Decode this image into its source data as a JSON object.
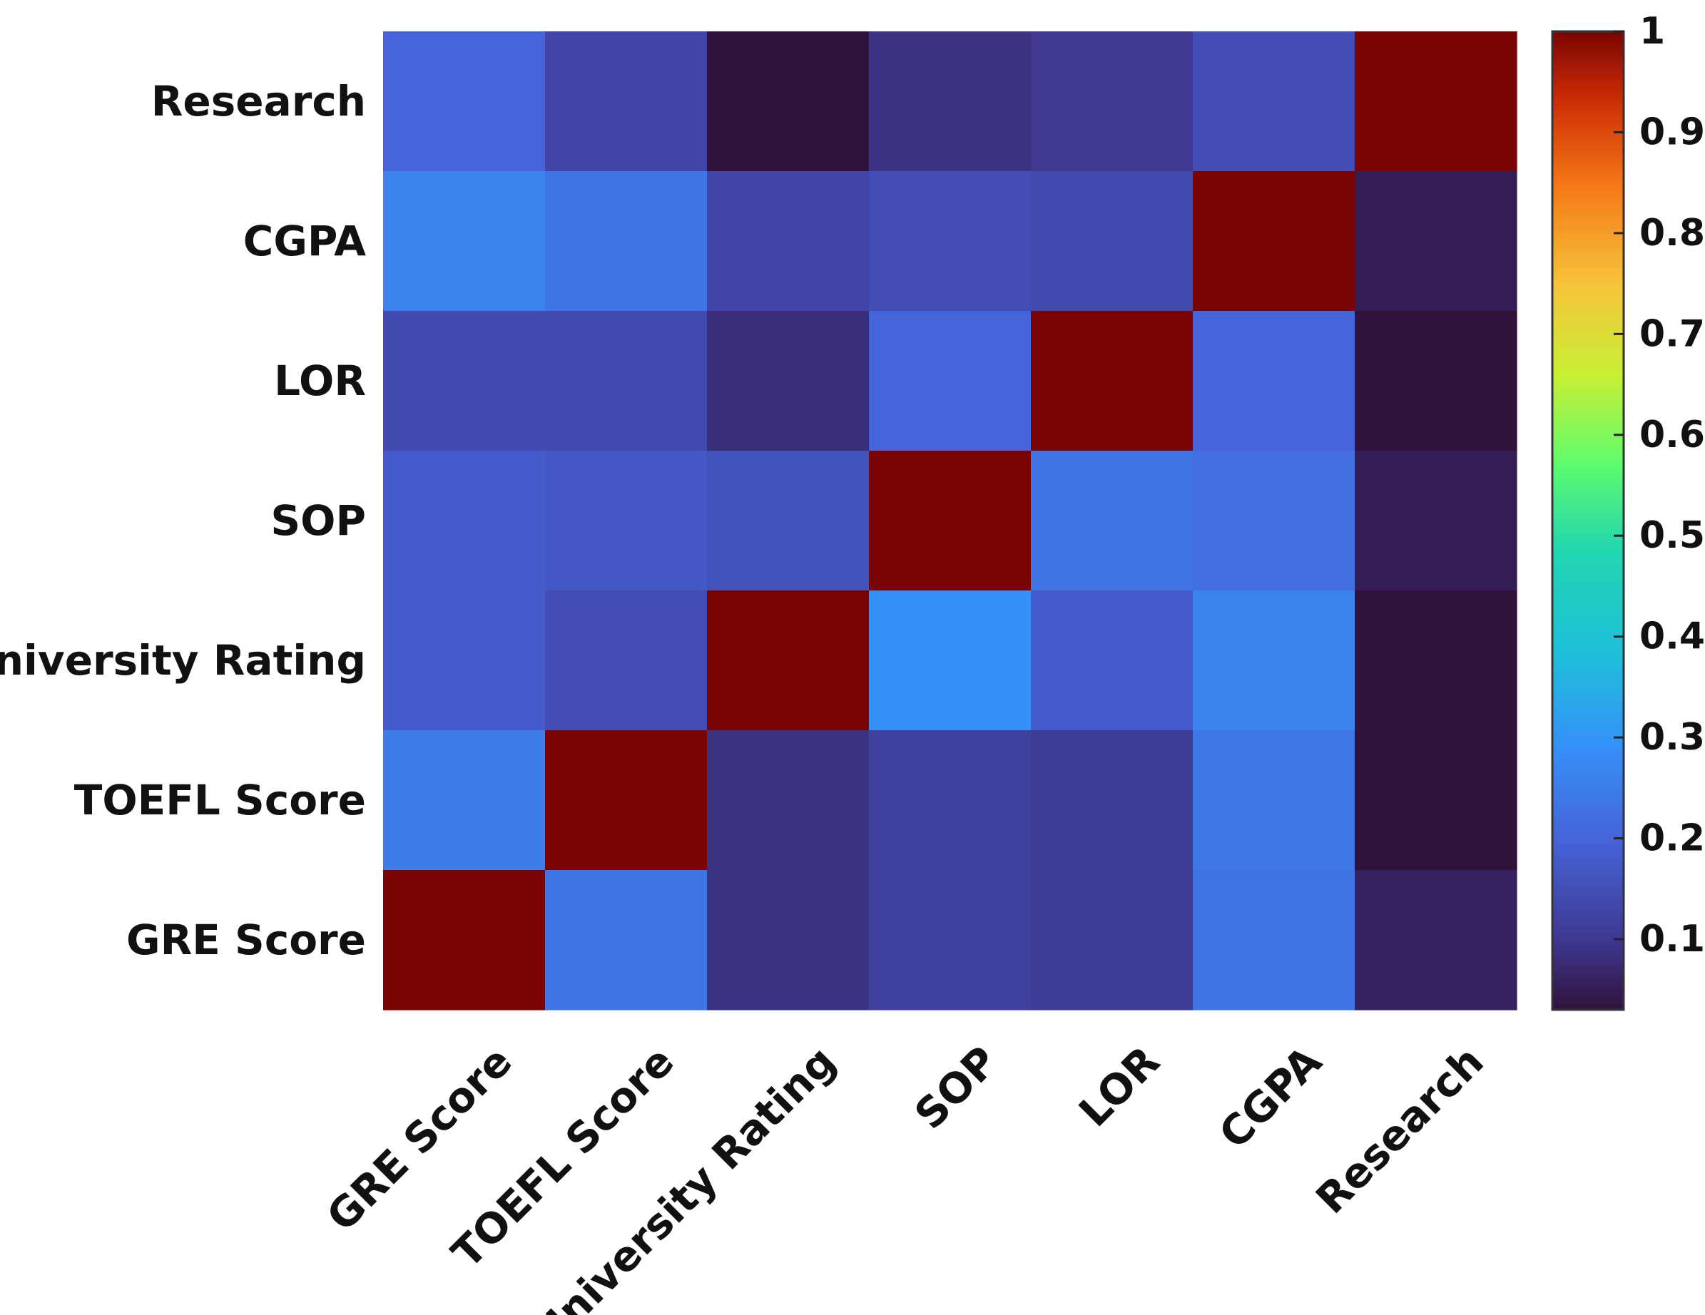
{
  "chart_data": {
    "type": "heatmap",
    "title": "",
    "xlabel": "",
    "ylabel": "",
    "x_categories": [
      "GRE Score",
      "TOEFL Score",
      "University Rating",
      "SOP",
      "LOR",
      "CGPA",
      "Research"
    ],
    "y_categories_top_to_bottom": [
      "Research",
      "CGPA",
      "LOR ",
      "SOP",
      "University Rating",
      "TOEFL Score",
      "GRE Score"
    ],
    "values_top_to_bottom": [
      [
        0.2,
        0.13,
        0.03,
        0.09,
        0.1,
        0.15,
        1.0
      ],
      [
        0.26,
        0.23,
        0.13,
        0.15,
        0.14,
        1.0,
        0.05
      ],
      [
        0.14,
        0.14,
        0.08,
        0.2,
        1.0,
        0.2,
        0.03
      ],
      [
        0.18,
        0.17,
        0.16,
        1.0,
        0.23,
        0.22,
        0.05
      ],
      [
        0.18,
        0.15,
        1.0,
        0.29,
        0.18,
        0.26,
        0.03
      ],
      [
        0.25,
        1.0,
        0.09,
        0.12,
        0.11,
        0.24,
        0.03
      ],
      [
        1.0,
        0.23,
        0.09,
        0.12,
        0.11,
        0.23,
        0.06
      ]
    ],
    "colormap": "jet",
    "colorbar": {
      "range": [
        0.03,
        1.0
      ],
      "ticks": [
        0.1,
        0.2,
        0.3,
        0.4,
        0.5,
        0.6,
        0.7,
        0.8,
        0.9,
        1.0
      ],
      "tick_labels": [
        "0.1",
        "0.2",
        "0.3",
        "0.4",
        "0.5",
        "0.6",
        "0.7",
        "0.8",
        "0.9",
        "1"
      ]
    },
    "grid": false
  }
}
